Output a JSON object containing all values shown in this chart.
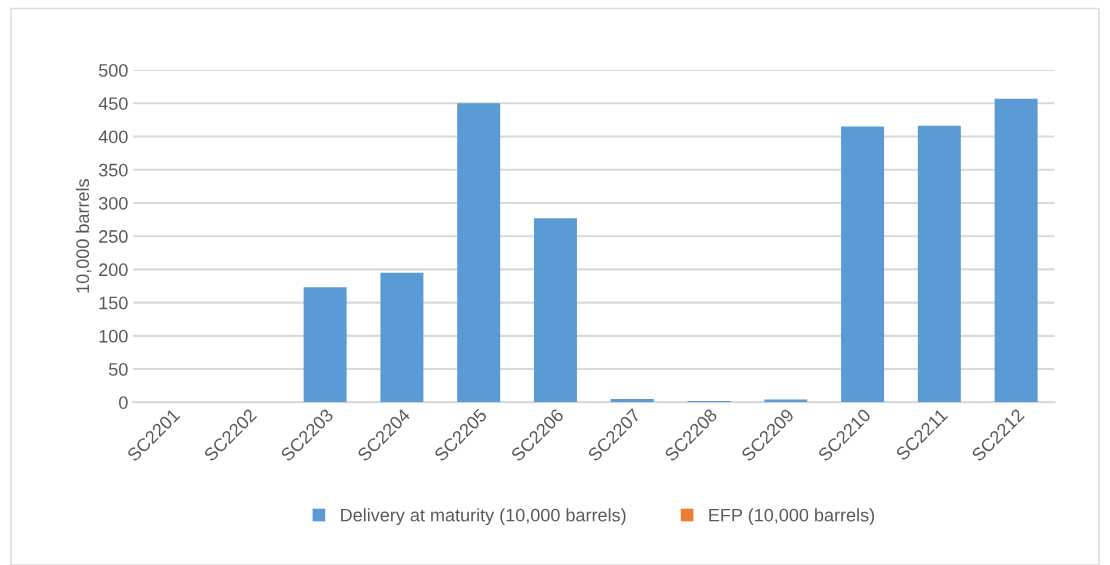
{
  "chart_data": {
    "type": "bar",
    "ylabel": "10,000 barrels",
    "categories": [
      "SC2201",
      "SC2202",
      "SC2203",
      "SC2204",
      "SC2205",
      "SC2206",
      "SC2207",
      "SC2208",
      "SC2209",
      "SC2210",
      "SC2211",
      "SC2212"
    ],
    "series": [
      {
        "name": "Delivery at maturity (10,000 barrels)",
        "color": "#5b9bd5",
        "values": [
          0,
          0,
          173,
          195,
          450,
          277,
          5,
          2,
          4,
          415,
          416,
          457
        ]
      },
      {
        "name": "EFP (10,000 barrels)",
        "color": "#ed7d31",
        "values": [
          0,
          0,
          0,
          0,
          0,
          0,
          0,
          0,
          0,
          0,
          0,
          0
        ]
      }
    ],
    "ylim": [
      0,
      500
    ],
    "yticks": [
      0,
      50,
      100,
      150,
      200,
      250,
      300,
      350,
      400,
      450,
      500
    ],
    "grid": "y",
    "legend": "bottom"
  }
}
